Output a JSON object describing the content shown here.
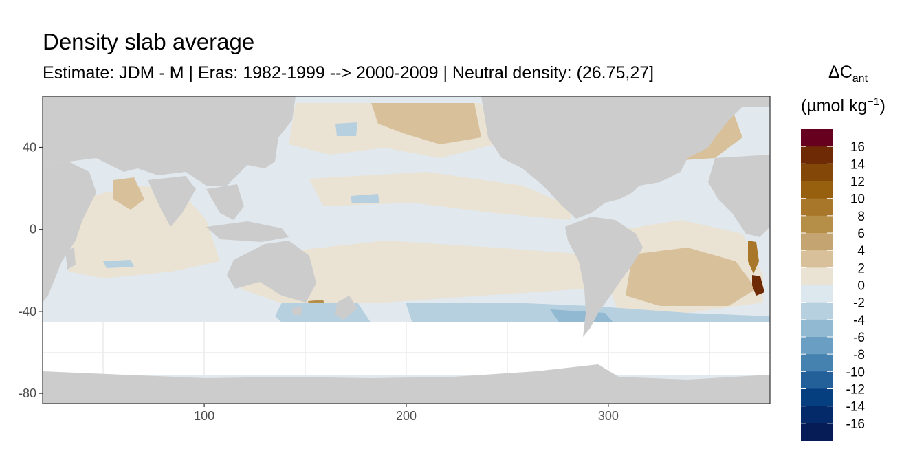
{
  "title": "Density slab average",
  "subtitle": "Estimate: JDM - M | Eras: 1982-1999 --> 2000-2009 | Neutral density: (26.75,27]",
  "chart_data": {
    "type": "heatmap",
    "title": "Density slab average",
    "subtitle": "Estimate: JDM - M | Eras: 1982-1999 --> 2000-2009 | Neutral density: (26.75,27]",
    "xlabel": "",
    "ylabel": "",
    "xlim": [
      20,
      380
    ],
    "ylim": [
      -85,
      65
    ],
    "x_ticks": [
      100,
      200,
      300
    ],
    "y_ticks": [
      40,
      0,
      -40,
      -80
    ],
    "grid": true,
    "legend": {
      "position": "right",
      "title_main": "ΔC",
      "title_sub": "ant",
      "title_units_pre": "(µmol kg",
      "title_units_sup": "−1",
      "title_units_post": ")",
      "labels": [
        "16",
        "14",
        "12",
        "10",
        "8",
        "6",
        "4",
        "2",
        "0",
        "-2",
        "-4",
        "-6",
        "-8",
        "-10",
        "-12",
        "-14",
        "-16"
      ],
      "colors": [
        "#67001f",
        "#6e2a05",
        "#834708",
        "#96600f",
        "#a8772a",
        "#b58f47",
        "#c4a572",
        "#d7c09a",
        "#eae2d3",
        "#dde8ee",
        "#b7d0e0",
        "#91b9d2",
        "#6a9fc3",
        "#4682b0",
        "#235f99",
        "#063f7f",
        "#042a6a",
        "#061c56"
      ]
    },
    "colors": {
      "land": "#cccccc",
      "no_data": "#ffffff",
      "panel_border": "#333333",
      "grid": "#ebebeb"
    }
  }
}
